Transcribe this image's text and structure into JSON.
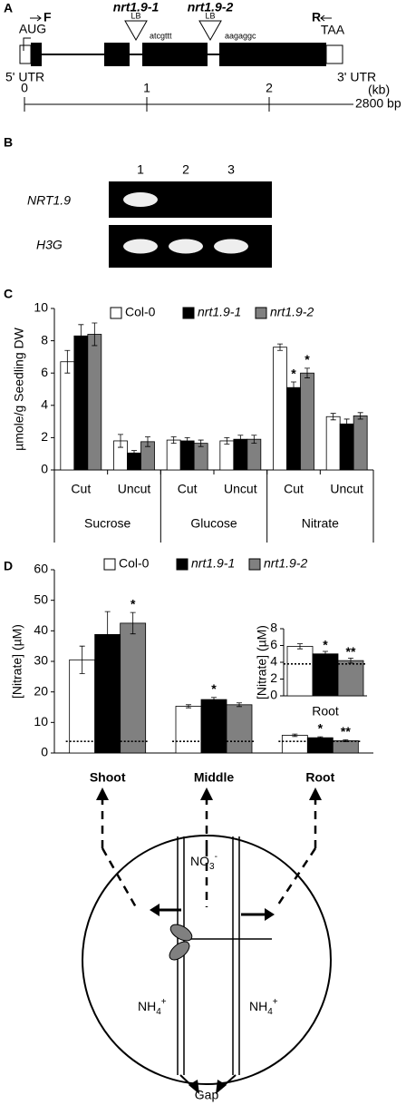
{
  "gene_map": {
    "panel": "A",
    "forward_primer": "F",
    "start_codon": "AUG",
    "insertions": [
      {
        "name": "nrt1.9-1",
        "border": "LB",
        "sequence": "atcgttt"
      },
      {
        "name": "nrt1.9-2",
        "border": "LB",
        "sequence": "aagaggc"
      }
    ],
    "reverse_primer": "R",
    "stop_codon": "TAA",
    "utr5": "5' UTR",
    "utr3": "3' UTR",
    "scale": {
      "ticks": [
        "0",
        "1",
        "2"
      ],
      "unit": "(kb)",
      "length": "2800 bp"
    }
  },
  "gel": {
    "panel": "B",
    "lanes": [
      "1",
      "2",
      "3"
    ],
    "rows": [
      {
        "name": "NRT1.9",
        "bands": [
          true,
          false,
          false
        ]
      },
      {
        "name": "H3G",
        "bands": [
          true,
          true,
          true
        ]
      }
    ]
  },
  "chart_data": [
    {
      "type": "bar",
      "panel": "C",
      "ylabel": "µmole/g Seedling DW",
      "categories": [
        "Cut",
        "Uncut",
        "Cut",
        "Uncut",
        "Cut",
        "Uncut"
      ],
      "groups": [
        "Sucrose",
        "Glucose",
        "Nitrate"
      ],
      "ylim": [
        0,
        10
      ],
      "yticks": [
        0,
        2,
        4,
        6,
        8,
        10
      ],
      "series": [
        {
          "name": "Col-0",
          "color": "#ffffff",
          "values": [
            6.7,
            1.8,
            1.85,
            1.8,
            7.6,
            3.3
          ],
          "errors": [
            0.7,
            0.4,
            0.2,
            0.2,
            0.2,
            0.2
          ],
          "significance": [
            null,
            null,
            null,
            null,
            null,
            null
          ]
        },
        {
          "name": "nrt1.9-1",
          "color": "#000000",
          "values": [
            8.3,
            1.05,
            1.8,
            1.9,
            5.1,
            2.85
          ],
          "errors": [
            0.7,
            0.15,
            0.2,
            0.25,
            0.35,
            0.3
          ],
          "significance": [
            null,
            null,
            null,
            null,
            "*",
            null
          ]
        },
        {
          "name": "nrt1.9-2",
          "color": "#808080",
          "values": [
            8.4,
            1.75,
            1.65,
            1.9,
            6.0,
            3.35
          ],
          "errors": [
            0.7,
            0.3,
            0.2,
            0.25,
            0.3,
            0.2
          ],
          "significance": [
            null,
            null,
            null,
            null,
            "*",
            null
          ]
        }
      ]
    },
    {
      "type": "bar",
      "panel": "D",
      "ylabel": "[Nitrate] (µM)",
      "categories": [
        "Shoot",
        "Middle",
        "Root"
      ],
      "ylim": [
        0,
        60
      ],
      "yticks": [
        0,
        10,
        20,
        30,
        40,
        50,
        60
      ],
      "reference_line": 3.8,
      "series": [
        {
          "name": "Col-0",
          "color": "#ffffff",
          "values": [
            30.5,
            15.3,
            5.8
          ],
          "errors": [
            4.5,
            0.5,
            0.4
          ],
          "significance": [
            null,
            null,
            null
          ]
        },
        {
          "name": "nrt1.9-1",
          "color": "#000000",
          "values": [
            38.8,
            17.5,
            5.0
          ],
          "errors": [
            7.5,
            0.7,
            0.3
          ],
          "significance": [
            null,
            "*",
            "*"
          ]
        },
        {
          "name": "nrt1.9-2",
          "color": "#808080",
          "values": [
            42.5,
            15.8,
            4.0
          ],
          "errors": [
            3.5,
            0.6,
            0.3
          ],
          "significance": [
            "*",
            null,
            "**"
          ]
        }
      ]
    },
    {
      "type": "bar",
      "ylabel": "[Nitrate] (µM)",
      "categories": [
        "Root"
      ],
      "ylim": [
        0,
        8
      ],
      "yticks": [
        0,
        2,
        4,
        6,
        8
      ],
      "reference_line": 3.8,
      "series": [
        {
          "color": "#ffffff",
          "values": [
            5.9
          ],
          "errors": [
            0.3
          ],
          "significance": [
            null
          ]
        },
        {
          "color": "#000000",
          "values": [
            5.0
          ],
          "errors": [
            0.3
          ],
          "significance": [
            "*"
          ]
        },
        {
          "color": "#808080",
          "values": [
            4.2
          ],
          "errors": [
            0.3
          ],
          "significance": [
            "**"
          ]
        }
      ]
    }
  ],
  "diagram": {
    "center": {
      "text": "NO",
      "sub": "3",
      "sup": "-"
    },
    "left": {
      "text": "NH",
      "sub": "4",
      "sup": "+"
    },
    "right": {
      "text": "NH",
      "sub": "4",
      "sup": "+"
    },
    "bottom": "Gap"
  }
}
